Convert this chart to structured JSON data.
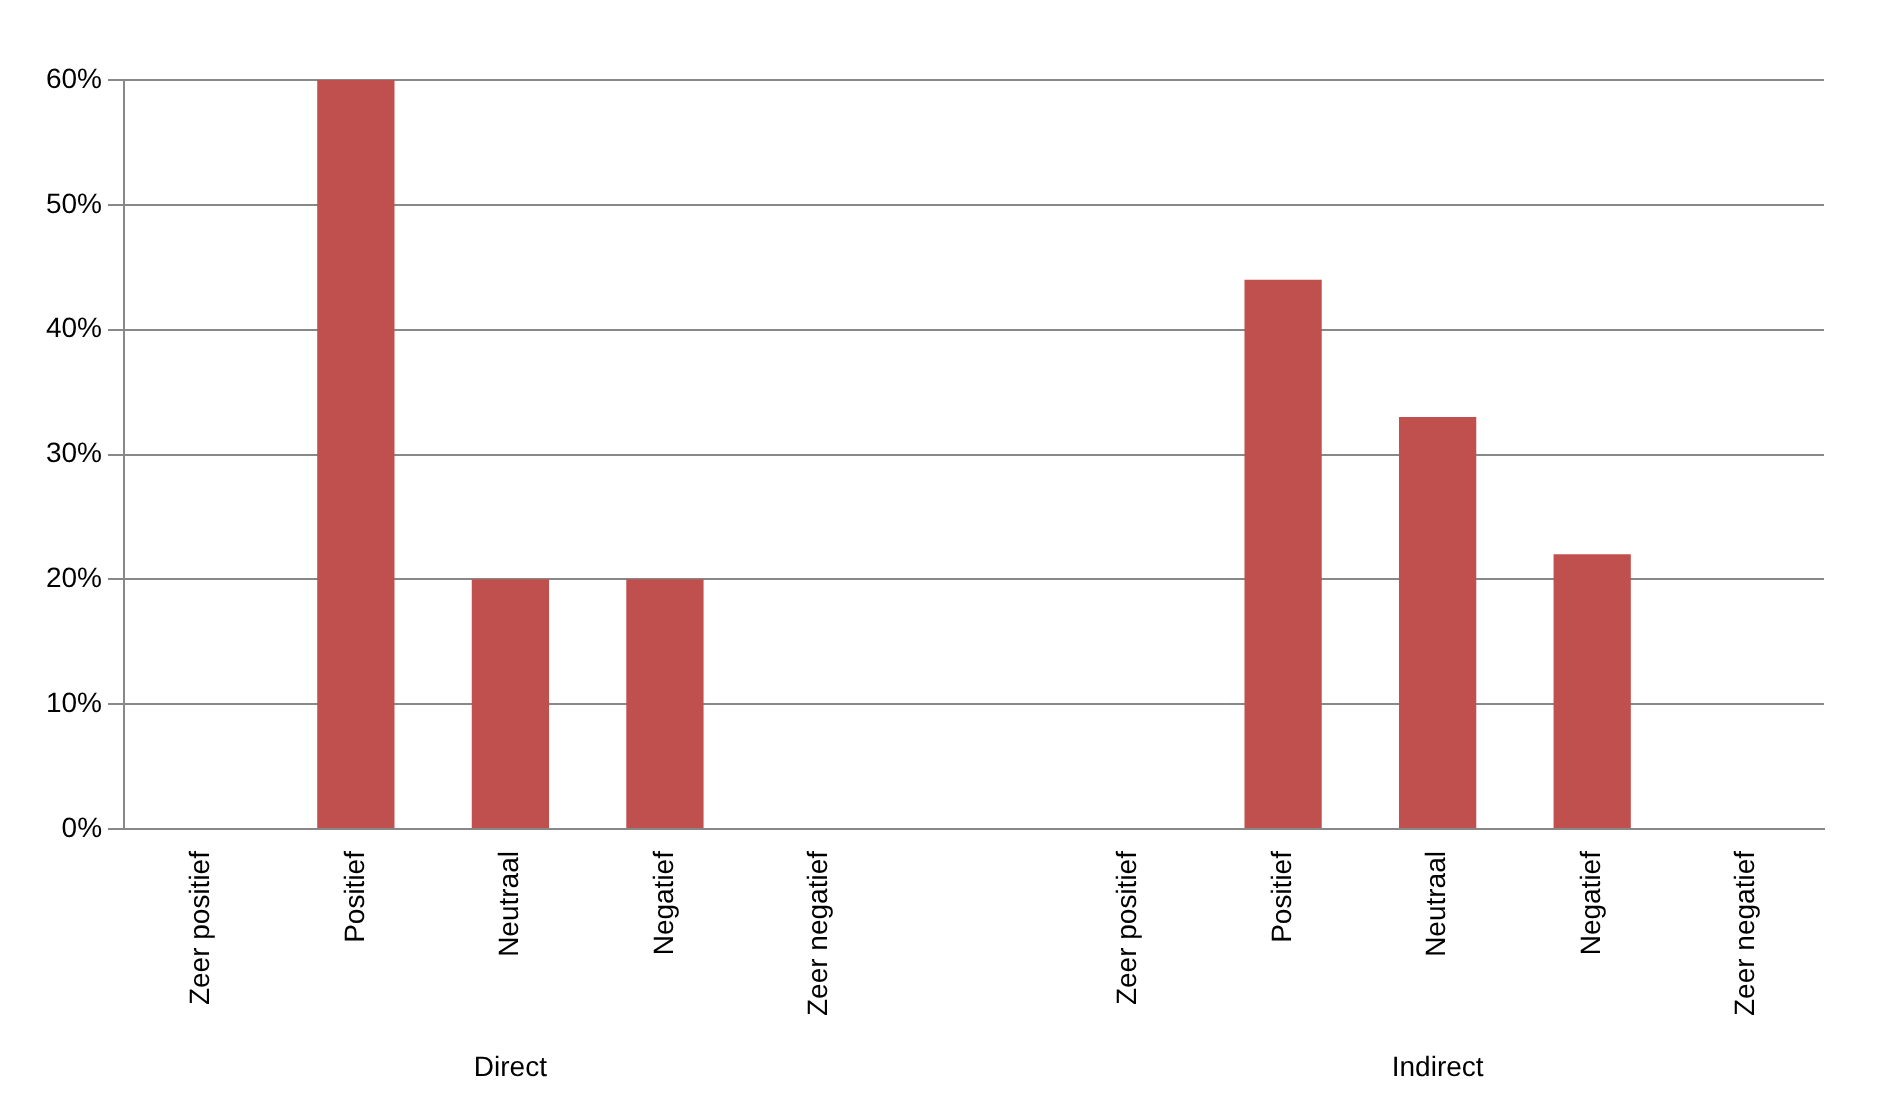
{
  "chart_data": {
    "type": "bar",
    "categories": [
      "Zeer positief",
      "Positief",
      "Neutraal",
      "Negatief",
      "Zeer negatief",
      null,
      "Zeer positief",
      "Positief",
      "Neutraal",
      "Negatief",
      "Zeer negatief"
    ],
    "values": [
      0,
      60,
      20,
      20,
      0,
      null,
      0,
      44,
      33,
      22,
      0
    ],
    "color": "#c0504d",
    "ylim": [
      0,
      60
    ],
    "yticks": [
      {
        "value": 0,
        "label": "0%"
      },
      {
        "value": 10,
        "label": "10%"
      },
      {
        "value": 20,
        "label": "20%"
      },
      {
        "value": 30,
        "label": "30%"
      },
      {
        "value": 40,
        "label": "40%"
      },
      {
        "value": 50,
        "label": "50%"
      },
      {
        "value": 60,
        "label": "60%"
      }
    ],
    "grid": "y",
    "legend": false,
    "annotations": [
      "Direct",
      "Indirect"
    ]
  }
}
